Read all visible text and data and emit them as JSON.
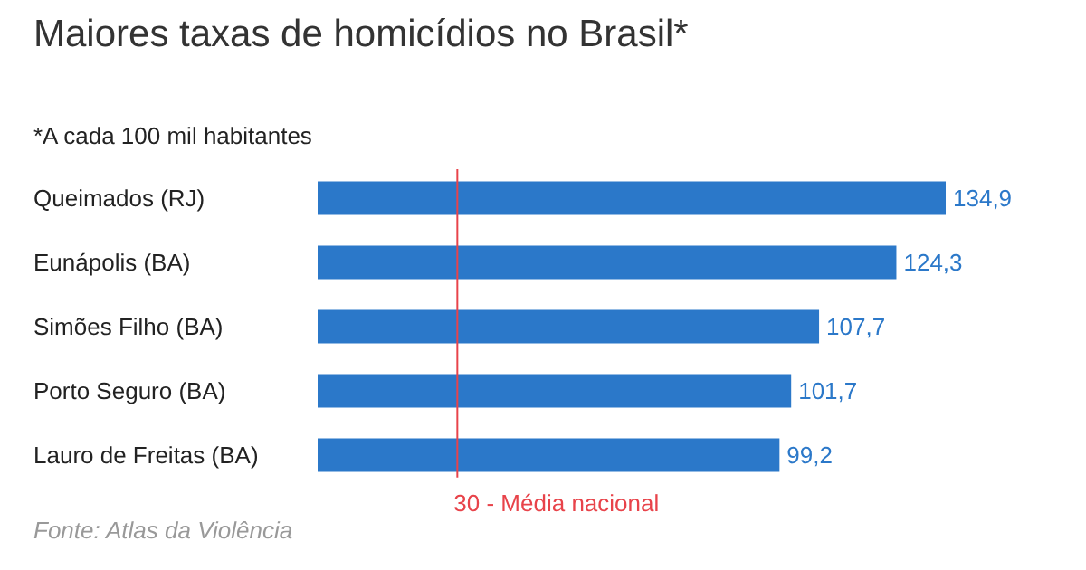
{
  "chart_data": {
    "type": "bar",
    "orientation": "horizontal",
    "title": "Maiores taxas de homicídios no Brasil*",
    "subtitle": "*A cada 100 mil habitantes",
    "categories": [
      "Queimados (RJ)",
      "Eunápolis (BA)",
      "Simões Filho (BA)",
      "Porto Seguro (BA)",
      "Lauro de Freitas (BA)"
    ],
    "values": [
      134.9,
      124.3,
      107.7,
      101.7,
      99.2
    ],
    "value_labels": [
      "134,9",
      "124,3",
      "107,7",
      "101,7",
      "99,2"
    ],
    "color": "#2b78c9",
    "ref_lines": [
      {
        "axis": "x",
        "value": 30,
        "label": "30 - Média nacional",
        "color": "#e8434a"
      }
    ],
    "annotations": [
      "Fonte: Atlas da Violência"
    ]
  }
}
